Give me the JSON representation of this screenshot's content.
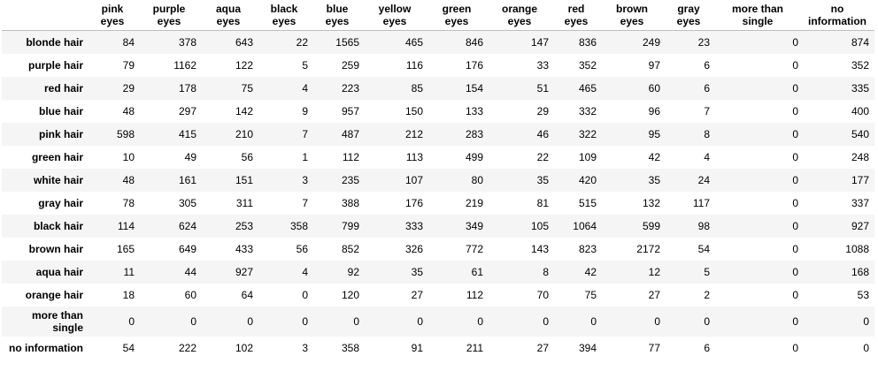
{
  "table": {
    "columns": [
      "pink eyes",
      "purple eyes",
      "aqua eyes",
      "black eyes",
      "blue eyes",
      "yellow eyes",
      "green eyes",
      "orange eyes",
      "red eyes",
      "brown eyes",
      "gray eyes",
      "more than single",
      "no information"
    ],
    "rows": [
      {
        "label": "blonde hair",
        "values": [
          84,
          378,
          643,
          22,
          1565,
          465,
          846,
          147,
          836,
          249,
          23,
          0,
          874
        ]
      },
      {
        "label": "purple hair",
        "values": [
          79,
          1162,
          122,
          5,
          259,
          116,
          176,
          33,
          352,
          97,
          6,
          0,
          352
        ]
      },
      {
        "label": "red hair",
        "values": [
          29,
          178,
          75,
          4,
          223,
          85,
          154,
          51,
          465,
          60,
          6,
          0,
          335
        ]
      },
      {
        "label": "blue hair",
        "values": [
          48,
          297,
          142,
          9,
          957,
          150,
          133,
          29,
          332,
          96,
          7,
          0,
          400
        ]
      },
      {
        "label": "pink hair",
        "values": [
          598,
          415,
          210,
          7,
          487,
          212,
          283,
          46,
          322,
          95,
          8,
          0,
          540
        ]
      },
      {
        "label": "green hair",
        "values": [
          10,
          49,
          56,
          1,
          112,
          113,
          499,
          22,
          109,
          42,
          4,
          0,
          248
        ]
      },
      {
        "label": "white hair",
        "values": [
          48,
          161,
          151,
          3,
          235,
          107,
          80,
          35,
          420,
          35,
          24,
          0,
          177
        ]
      },
      {
        "label": "gray hair",
        "values": [
          78,
          305,
          311,
          7,
          388,
          176,
          219,
          81,
          515,
          132,
          117,
          0,
          337
        ]
      },
      {
        "label": "black hair",
        "values": [
          114,
          624,
          253,
          358,
          799,
          333,
          349,
          105,
          1064,
          599,
          98,
          0,
          927
        ]
      },
      {
        "label": "brown hair",
        "values": [
          165,
          649,
          433,
          56,
          852,
          326,
          772,
          143,
          823,
          2172,
          54,
          0,
          1088
        ]
      },
      {
        "label": "aqua hair",
        "values": [
          11,
          44,
          927,
          4,
          92,
          35,
          61,
          8,
          42,
          12,
          5,
          0,
          168
        ]
      },
      {
        "label": "orange hair",
        "values": [
          18,
          60,
          64,
          0,
          120,
          27,
          112,
          70,
          75,
          27,
          2,
          0,
          53
        ]
      },
      {
        "label": "more than single",
        "values": [
          0,
          0,
          0,
          0,
          0,
          0,
          0,
          0,
          0,
          0,
          0,
          0,
          0
        ]
      },
      {
        "label": "no information",
        "values": [
          54,
          222,
          102,
          3,
          358,
          91,
          211,
          27,
          394,
          77,
          6,
          0,
          0
        ]
      }
    ]
  }
}
